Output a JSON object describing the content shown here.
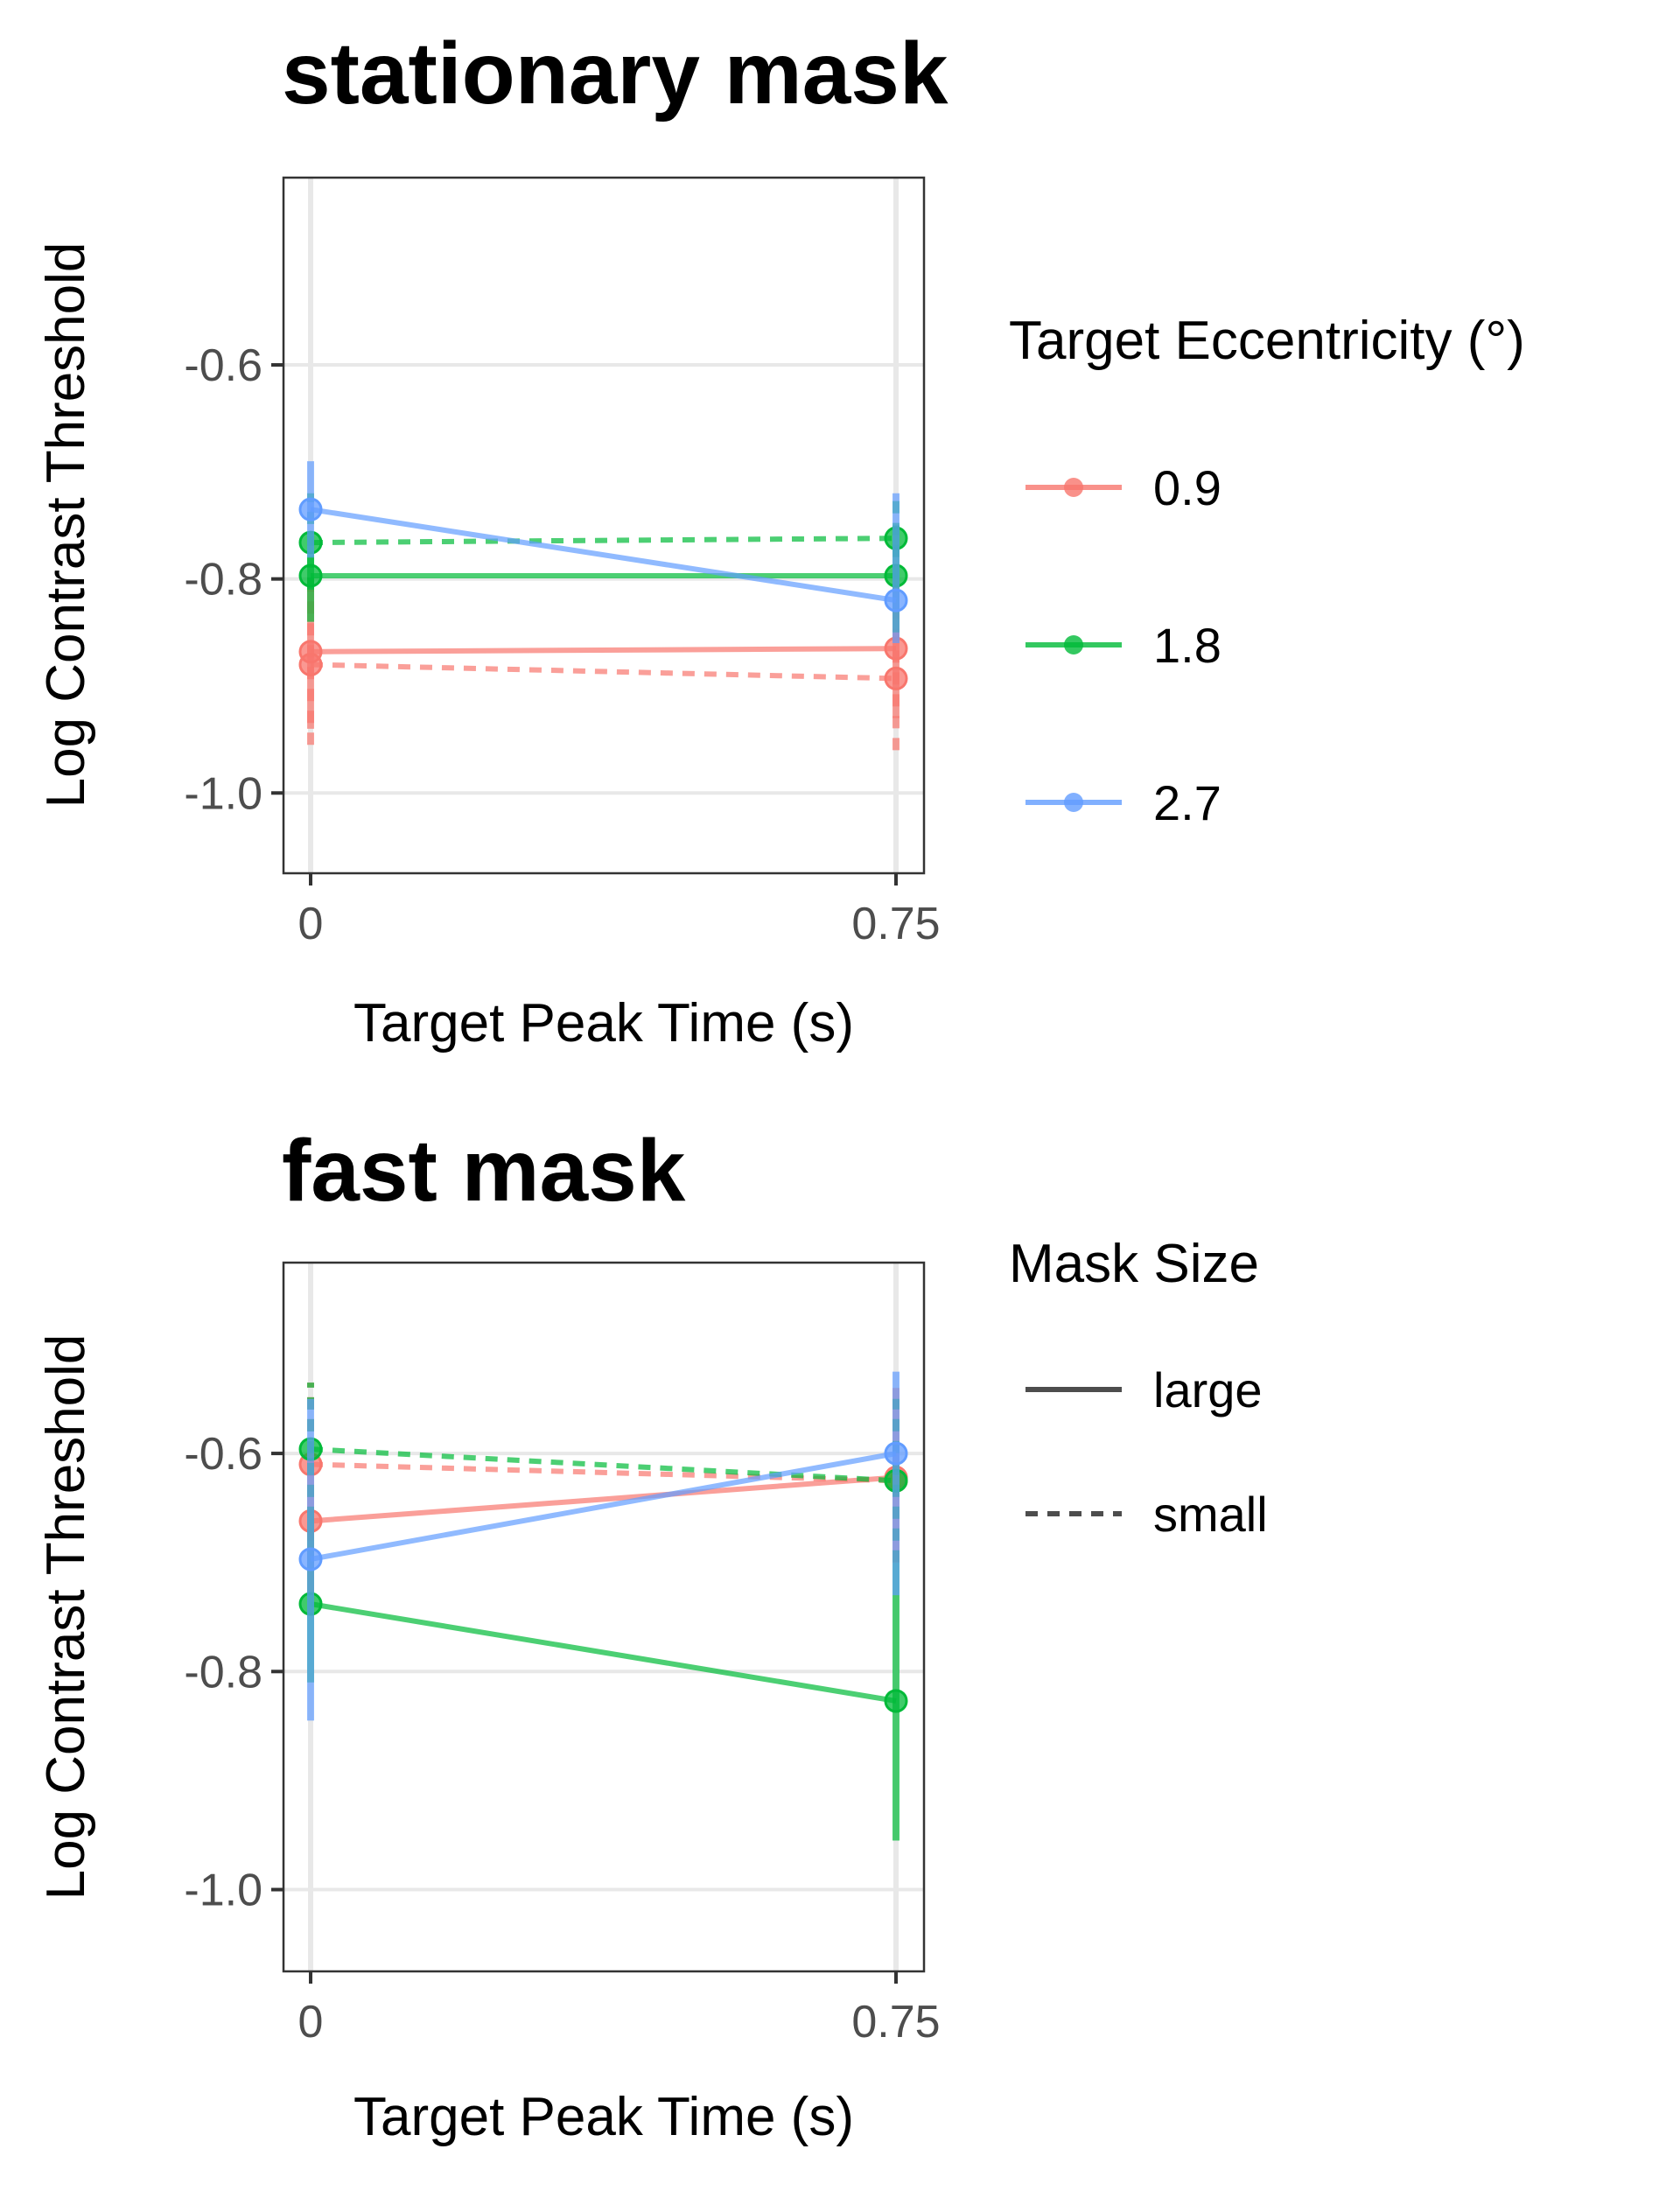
{
  "chart_data": [
    {
      "type": "line",
      "title": "stationary mask",
      "xlabel": "Target Peak Time (s)",
      "ylabel": "Log Contrast Threshold",
      "x": [
        0,
        0.75
      ],
      "x_tick_labels": [
        "0",
        "0.75"
      ],
      "ylim": [
        -1.075,
        -0.425
      ],
      "y_ticks": [
        -0.6,
        -0.8,
        -1.0
      ],
      "y_tick_labels": [
        "-0.6",
        "-0.8",
        "-1.0"
      ],
      "grid": true,
      "series": [
        {
          "eccentricity": "0.9",
          "mask_size": "large",
          "color": "#F8766D",
          "values": [
            -0.868,
            -0.865
          ],
          "err_low": [
            -0.94,
            -0.93
          ],
          "err_high": [
            -0.8,
            -0.8
          ]
        },
        {
          "eccentricity": "0.9",
          "mask_size": "small",
          "color": "#F8766D",
          "values": [
            -0.88,
            -0.893
          ],
          "err_low": [
            -0.955,
            -0.96
          ],
          "err_high": [
            -0.81,
            -0.83
          ]
        },
        {
          "eccentricity": "1.8",
          "mask_size": "large",
          "color": "#00BA38",
          "values": [
            -0.797,
            -0.797
          ],
          "err_low": [
            -0.84,
            -0.85
          ],
          "err_high": [
            -0.76,
            -0.75
          ]
        },
        {
          "eccentricity": "1.8",
          "mask_size": "small",
          "color": "#00BA38",
          "values": [
            -0.766,
            -0.762
          ],
          "err_low": [
            -0.81,
            -0.8
          ],
          "err_high": [
            -0.72,
            -0.72
          ]
        },
        {
          "eccentricity": "2.7",
          "mask_size": "large",
          "color": "#619CFF",
          "values": [
            -0.735,
            -0.82
          ],
          "err_low": [
            -0.78,
            -0.86
          ],
          "err_high": [
            -0.69,
            -0.72
          ]
        }
      ]
    },
    {
      "type": "line",
      "title": "fast mask",
      "xlabel": "Target Peak Time (s)",
      "ylabel": "Log Contrast Threshold",
      "x": [
        0,
        0.75
      ],
      "x_tick_labels": [
        "0",
        "0.75"
      ],
      "ylim": [
        -1.075,
        -0.425
      ],
      "y_ticks": [
        -0.6,
        -0.8,
        -1.0
      ],
      "y_tick_labels": [
        "-0.6",
        "-0.8",
        "-1.0"
      ],
      "grid": true,
      "series": [
        {
          "eccentricity": "0.9",
          "mask_size": "large",
          "color": "#F8766D",
          "values": [
            -0.662,
            -0.622
          ],
          "err_low": [
            -0.73,
            -0.7
          ],
          "err_high": [
            -0.59,
            -0.54
          ]
        },
        {
          "eccentricity": "0.9",
          "mask_size": "small",
          "color": "#F8766D",
          "values": [
            -0.61,
            -0.625
          ],
          "err_low": [
            -0.68,
            -0.7
          ],
          "err_high": [
            -0.535,
            -0.55
          ]
        },
        {
          "eccentricity": "1.8",
          "mask_size": "large",
          "color": "#00BA38",
          "values": [
            -0.738,
            -0.827
          ],
          "err_low": [
            -0.81,
            -0.955
          ],
          "err_high": [
            -0.66,
            -0.7
          ]
        },
        {
          "eccentricity": "1.8",
          "mask_size": "small",
          "color": "#00BA38",
          "values": [
            -0.596,
            -0.625
          ],
          "err_low": [
            -0.66,
            -0.7
          ],
          "err_high": [
            -0.535,
            -0.55
          ]
        },
        {
          "eccentricity": "2.7",
          "mask_size": "large",
          "color": "#619CFF",
          "values": [
            -0.697,
            -0.6
          ],
          "err_low": [
            -0.845,
            -0.73
          ],
          "err_high": [
            -0.55,
            -0.525
          ]
        }
      ]
    }
  ],
  "legend": {
    "position": "right",
    "eccentricity": {
      "title": "Target Eccentricity (°)",
      "items": [
        {
          "label": "0.9",
          "color": "#F8766D"
        },
        {
          "label": "1.8",
          "color": "#00BA38"
        },
        {
          "label": "2.7",
          "color": "#619CFF"
        }
      ]
    },
    "mask_size": {
      "title": "Mask Size",
      "items": [
        {
          "label": "large",
          "line": "solid"
        },
        {
          "label": "small",
          "line": "dashed"
        }
      ]
    }
  }
}
